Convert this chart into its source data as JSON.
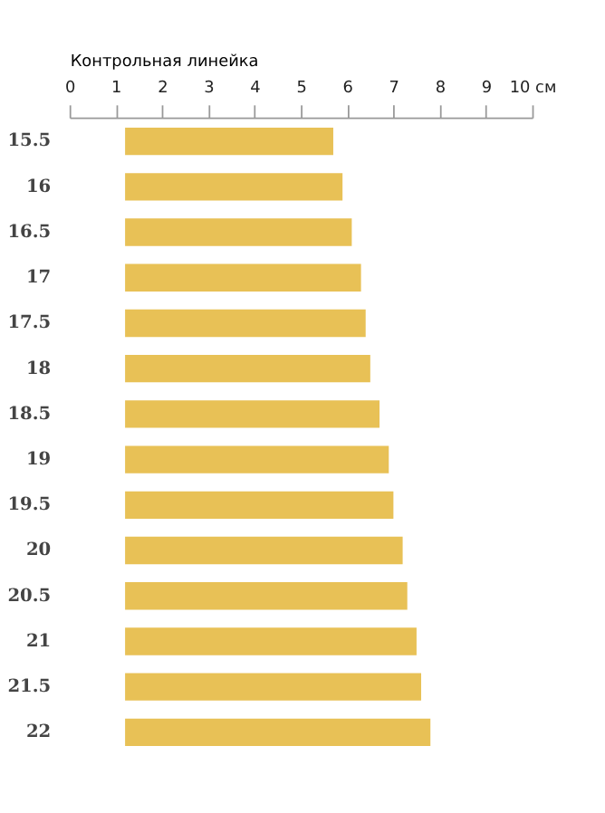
{
  "chart_data": {
    "type": "bar",
    "orientation": "horizontal",
    "xlabel": "Контрольная линейка",
    "categories": [
      "15.5",
      "16",
      "16.5",
      "17",
      "17.5",
      "18",
      "18.5",
      "19",
      "19.5",
      "20",
      "20.5",
      "21",
      "21.5",
      "22"
    ],
    "base": [
      1.2,
      1.2,
      1.2,
      1.2,
      1.2,
      1.2,
      1.2,
      1.2,
      1.2,
      1.2,
      1.2,
      1.2,
      1.2,
      1.2
    ],
    "values": [
      4.5,
      4.7,
      4.9,
      5.1,
      5.2,
      5.3,
      5.5,
      5.7,
      5.8,
      6.0,
      6.1,
      6.3,
      6.4,
      6.6
    ],
    "color": "#e8c156",
    "xlim": [
      0,
      10
    ],
    "xticks": [
      0,
      1,
      2,
      3,
      4,
      5,
      6,
      7,
      8,
      9,
      {
        "value": 10,
        "label": "10 см"
      }
    ],
    "grid": false
  }
}
